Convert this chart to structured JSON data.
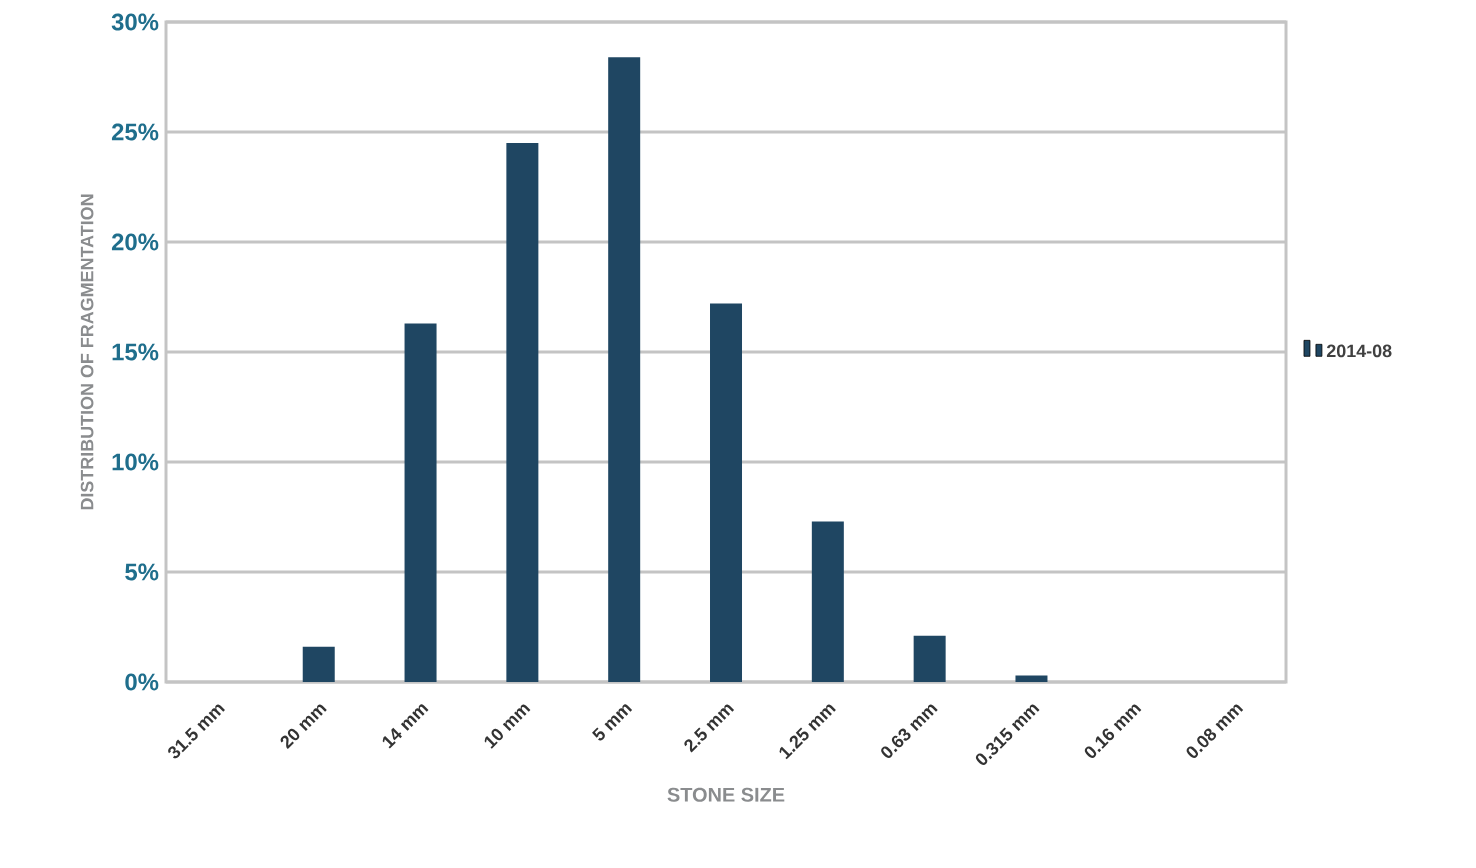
{
  "chart_data": {
    "type": "bar",
    "xlabel": "STONE SIZE",
    "ylabel": "DISTRIBUTION OF FRAGMENTATION",
    "categories": [
      "31.5 mm",
      "20 mm",
      "14 mm",
      "10 mm",
      "5 mm",
      "2.5 mm",
      "1.25 mm",
      "0.63 mm",
      "0.315 mm",
      "0.16 mm",
      "0.08 mm"
    ],
    "series": [
      {
        "name": "2014-08",
        "color": "#1f4662",
        "values": [
          0,
          1.6,
          16.3,
          24.5,
          28.4,
          17.2,
          7.3,
          2.1,
          0.3,
          0,
          0
        ]
      }
    ],
    "ylim": [
      0,
      30
    ],
    "yticks": [
      {
        "value": 0,
        "label": "0%"
      },
      {
        "value": 5,
        "label": "5%"
      },
      {
        "value": 10,
        "label": "10%"
      },
      {
        "value": 15,
        "label": "15%"
      },
      {
        "value": 20,
        "label": "20%"
      },
      {
        "value": 25,
        "label": "25%"
      },
      {
        "value": 30,
        "label": "30%"
      }
    ],
    "grid": "y",
    "legend": "right"
  }
}
